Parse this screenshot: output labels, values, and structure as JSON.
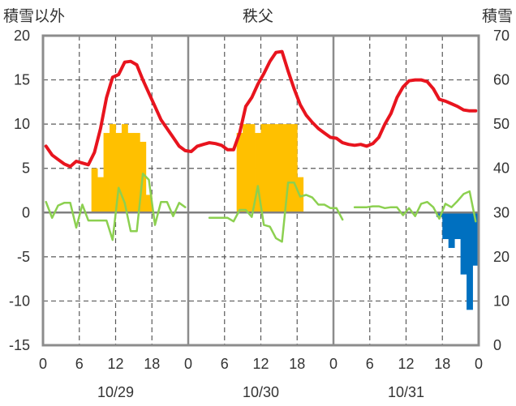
{
  "chart_data": {
    "type": "bar+line",
    "title": "秩父",
    "left_axis_label": "積雪以外",
    "right_axis_label": "積雪",
    "left_ylim": [
      -15,
      20
    ],
    "left_ticks": [
      "20",
      "15",
      "10",
      "5",
      "0",
      "-5",
      "-10",
      "-15"
    ],
    "right_ylim": [
      0,
      70
    ],
    "right_ticks": [
      "70",
      "60",
      "50",
      "40",
      "30",
      "20",
      "10",
      "0"
    ],
    "x_range_hours": [
      0,
      72
    ],
    "x_tick_values": [
      0,
      6,
      12,
      18,
      24,
      30,
      36,
      42,
      48,
      54,
      60,
      66,
      72
    ],
    "x_tick_labels": [
      "0",
      "6",
      "12",
      "18",
      "0",
      "6",
      "12",
      "18",
      "0",
      "6",
      "12",
      "18",
      "0"
    ],
    "day_labels": [
      "10/29",
      "10/30",
      "10/31"
    ],
    "day_centers_hours": [
      12,
      36,
      60
    ],
    "grid": "dashed vertical at 6-hour marks and horizontal at 5-unit steps; solid vertical at day boundaries",
    "series": [
      {
        "kind": "line",
        "color": "#e8141e",
        "x": [
          0,
          1,
          2,
          3,
          4,
          5,
          6,
          7,
          8,
          9,
          10,
          11,
          12,
          13,
          14,
          15,
          16,
          17,
          18,
          19,
          20,
          21,
          22,
          23,
          24,
          25,
          26,
          27,
          28,
          29,
          30,
          31,
          32,
          33,
          34,
          35,
          36,
          37,
          38,
          39,
          40,
          41,
          42,
          43,
          44,
          45,
          46,
          47,
          48,
          49,
          50,
          51,
          52,
          53,
          54,
          55,
          56,
          57,
          58,
          59,
          60,
          61,
          62,
          63,
          64,
          65,
          66,
          67,
          68,
          69,
          70,
          71
        ],
        "values": [
          7.5,
          6.5,
          6,
          5.5,
          5.2,
          5.8,
          5.6,
          5.4,
          6.8,
          9.5,
          13,
          15.3,
          15.6,
          17,
          17.1,
          16.7,
          15,
          13.5,
          12,
          10.5,
          9.5,
          8.5,
          7.5,
          7,
          6.9,
          7.5,
          7.7,
          7.9,
          7.8,
          7.6,
          7.1,
          7.1,
          9,
          12,
          13,
          14.5,
          15.7,
          17.1,
          18.1,
          18.2,
          16,
          14,
          12.2,
          11,
          10.2,
          9.5,
          9,
          8.5,
          8.4,
          7.9,
          7.7,
          7.6,
          7.7,
          7.5,
          7.8,
          8.5,
          10,
          11.2,
          13,
          14.2,
          14.9,
          15,
          15,
          14.8,
          14,
          12.8,
          12.6,
          12.3,
          12,
          11.6,
          11.5,
          11.5
        ]
      },
      {
        "kind": "line",
        "color": "#8cd050",
        "x": [
          0,
          1,
          2,
          3,
          4,
          5,
          6,
          7,
          8,
          9,
          10,
          11,
          12,
          13,
          14,
          15,
          16,
          17,
          18,
          19,
          20,
          21,
          22,
          23,
          null,
          27,
          28,
          29,
          30,
          31,
          32,
          33,
          34,
          35,
          36,
          37,
          38,
          39,
          40,
          41,
          42,
          43,
          44,
          45,
          46,
          47,
          48,
          49,
          null,
          51,
          52,
          53,
          54,
          55,
          56,
          57,
          58,
          59,
          60,
          61,
          62,
          63,
          64,
          65,
          66,
          67,
          68,
          69,
          70,
          71
        ],
        "values": [
          1.2,
          -0.6,
          0.8,
          1.1,
          1.1,
          -1.7,
          0.9,
          -0.9,
          -0.9,
          -0.9,
          -0.9,
          -3.1,
          2.8,
          1.1,
          -2.1,
          -2.1,
          4.4,
          3.7,
          -1.4,
          1.2,
          1.2,
          -0.4,
          1.1,
          0.6,
          null,
          -0.6,
          -0.6,
          -0.6,
          -0.6,
          -1,
          0.3,
          0.3,
          -0.5,
          3,
          -1.4,
          -1.6,
          -2.9,
          -3.3,
          3.4,
          3.4,
          1.8,
          2,
          1.7,
          0.9,
          0.9,
          0.5,
          0.5,
          -0.8,
          null,
          0.6,
          0.6,
          0.6,
          0.7,
          0.7,
          0.5,
          0.6,
          0.6,
          -0.3,
          0.5,
          -0.4,
          1,
          1.2,
          0.6,
          -0.7,
          1,
          0.6,
          1.3,
          2.1,
          2.4,
          -1
        ]
      },
      {
        "kind": "bar",
        "color": "#ffc000",
        "x": [
          8,
          9,
          10,
          11,
          12,
          13,
          14,
          15,
          16,
          17,
          32,
          33,
          34,
          35,
          36,
          37,
          38,
          39,
          40,
          41,
          42
        ],
        "values": [
          5,
          4,
          9,
          10,
          9,
          10,
          9,
          9,
          8,
          2,
          9,
          10,
          10,
          9,
          10,
          10,
          10,
          10,
          10,
          10,
          4
        ]
      },
      {
        "kind": "bar",
        "color": "#0070c0",
        "x": [
          65,
          66,
          67,
          68,
          69,
          70,
          71
        ],
        "values": [
          -0.5,
          -3,
          -4,
          -3,
          -7,
          -11,
          -6
        ]
      }
    ]
  }
}
